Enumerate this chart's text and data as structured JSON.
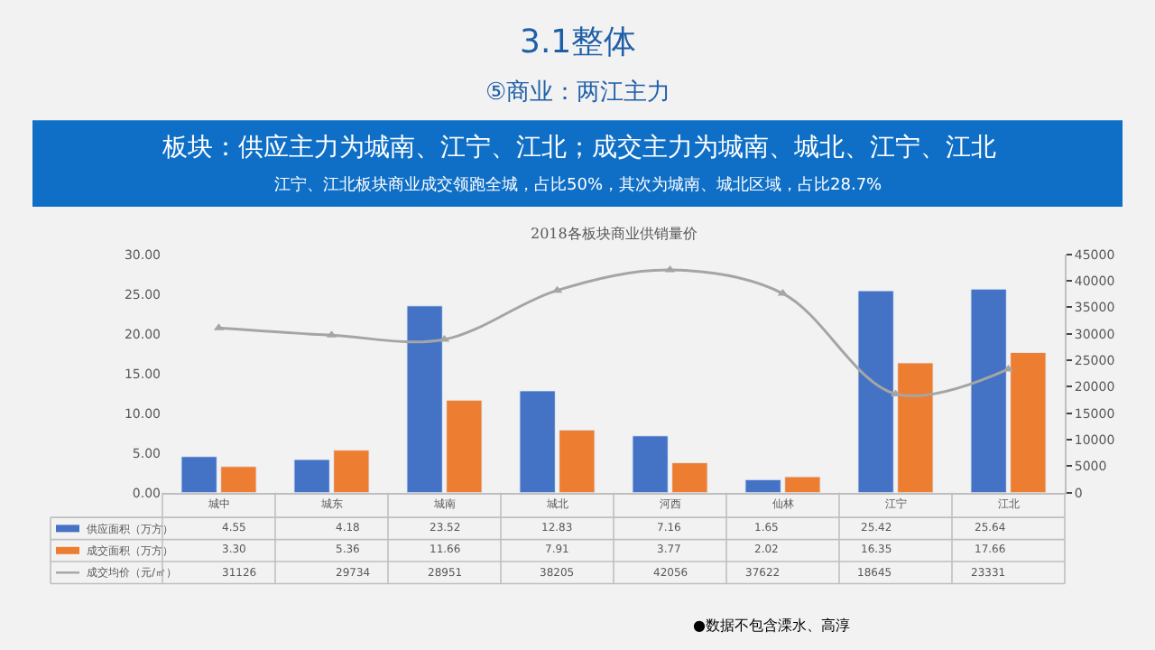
{
  "chart_data": {
    "type": "bar",
    "title": "2018各板块商业供销量价",
    "annotations": [
      "3.1整体",
      "⑤商业：两江主力",
      "板块：供应主力为城南、江宁、江北；成交主力为城南、城北、江宁、江北",
      "江宁、江北板块商业成交领跑全城，占比50%，其次为城南、城北区域，占比28.7%",
      "●数据不包含溧水、高淳"
    ],
    "categories": [
      "城中",
      "城东",
      "城南",
      "城北",
      "河西",
      "仙林",
      "江宁",
      "江北"
    ],
    "series": [
      {
        "name": "供应面积（万方）",
        "color": "#4472c4",
        "values": [
          4.55,
          4.18,
          23.52,
          12.83,
          7.16,
          1.65,
          25.42,
          25.64
        ],
        "value_labels": [
          "4.55",
          "4.18",
          "23.52",
          "12.83",
          "7.16",
          "1.65",
          "25.42",
          "25.64"
        ]
      },
      {
        "name": "成交面积（万方）",
        "color": "#ed7d31",
        "values": [
          3.3,
          5.36,
          11.66,
          7.91,
          3.77,
          2.02,
          16.35,
          17.66
        ],
        "value_labels": [
          "3.30",
          "5.36",
          "11.66",
          "7.91",
          "3.77",
          "2.02",
          "16.35",
          "17.66"
        ]
      },
      {
        "name": "成交均价（元/㎡）",
        "type": "line",
        "axis": "y2",
        "marker": "triangle",
        "color": "#a5a5a5",
        "values": [
          31126,
          29734,
          28951,
          38205,
          42056,
          37622,
          18645,
          23331
        ],
        "value_labels": [
          "31126",
          "29734",
          "28951",
          "38205",
          "42056",
          "37622",
          "18645",
          "23331"
        ]
      }
    ],
    "ylim": [
      0,
      30
    ],
    "yticks": [
      {
        "value": 0,
        "label": "0.00"
      },
      {
        "value": 5,
        "label": "5.00"
      },
      {
        "value": 10,
        "label": "10.00"
      },
      {
        "value": 15,
        "label": "15.00"
      },
      {
        "value": 20,
        "label": "20.00"
      },
      {
        "value": 25,
        "label": "25.00"
      },
      {
        "value": 30,
        "label": "30.00"
      }
    ],
    "y2lim": [
      0,
      45000
    ],
    "y2ticks": [
      0,
      5000,
      10000,
      15000,
      20000,
      25000,
      30000,
      35000,
      40000,
      45000
    ],
    "grid": false,
    "legend": "bottom"
  }
}
